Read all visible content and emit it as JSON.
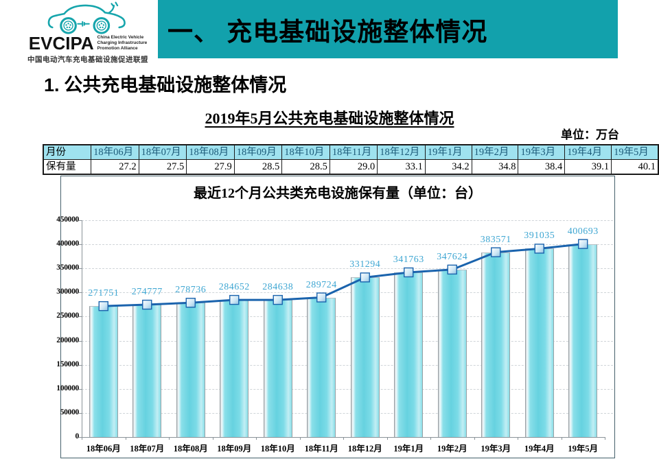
{
  "header": {
    "logo": {
      "icon": "ev-car-charging-logo",
      "acronym": "EVCIPA",
      "en_lines": [
        "China Electric Vehicle",
        "Charging Infrastructure",
        "Promotion Alliance"
      ],
      "cn_name": "中国电动汽车充电基础设施促进联盟",
      "color": "#16a5ac"
    },
    "banner": {
      "title": "一、 充电基础设施整体情况",
      "bg_color": "#12a1ac",
      "text_color": "#000000"
    }
  },
  "section": {
    "number": "1.",
    "title": " 公共充电基础设施整体情况"
  },
  "table_title": "2019年5月公共充电基础设施整体情况",
  "unit_label": "单位：万台",
  "table": {
    "month_header": "月份",
    "value_header": "保有量",
    "months": [
      "18年06月",
      "18年07月",
      "18年08月",
      "18年09月",
      "18年10月",
      "18年11月",
      "18年12月",
      "19年1月",
      "19年2月",
      "19年3月",
      "19年4月",
      "19年5月"
    ],
    "values": [
      "27.2",
      "27.5",
      "27.9",
      "28.5",
      "28.5",
      "29.0",
      "33.1",
      "34.2",
      "34.8",
      "38.4",
      "39.1",
      "40.1"
    ],
    "header_bg": "#9fe2ef",
    "header_text_color": "#1b5a78"
  },
  "chart_data": {
    "type": "bar",
    "overlay": "line",
    "title": "最近12个月公共类充电设施保有量（单位：台）",
    "categories": [
      "18年06月",
      "18年07月",
      "18年08月",
      "18年09月",
      "18年10月",
      "18年11月",
      "18年12月",
      "19年1月",
      "19年2月",
      "19年3月",
      "19年4月",
      "19年5月"
    ],
    "values": [
      271751,
      274777,
      278736,
      284652,
      284638,
      289724,
      331294,
      341763,
      347624,
      383571,
      391035,
      400693
    ],
    "xlabel": "",
    "ylabel": "",
    "ylim": [
      0,
      450000
    ],
    "ytick_step": 50000,
    "grid": "horizontal-dashed",
    "legend": "none",
    "bar_color": "#6fd6e3",
    "line_color": "#1a63ad",
    "data_label_color": "#3ea6d2"
  }
}
